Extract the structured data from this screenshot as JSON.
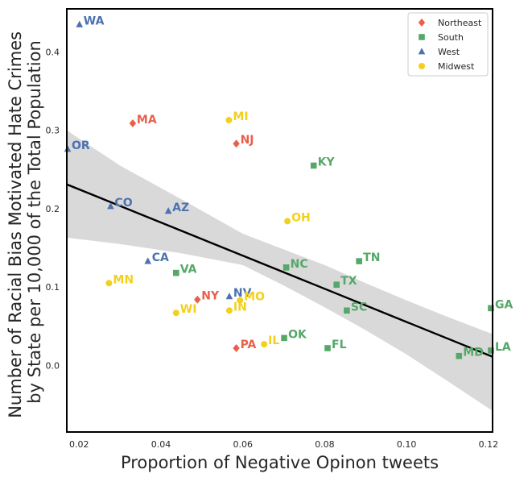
{
  "chart_data": {
    "type": "scatter",
    "xlabel": "Proportion of Negative Opinon tweets",
    "ylabel_lines": [
      "Number of Racial Bias Motivated Hate Crimes",
      "by State per 10,000 of the Total Population"
    ],
    "xlim": [
      0.017,
      0.121
    ],
    "ylim": [
      -0.085,
      0.455
    ],
    "xticks": [
      0.02,
      0.04,
      0.06,
      0.08,
      0.1,
      0.12
    ],
    "xtick_labels": [
      "0.02",
      "0.04",
      "0.06",
      "0.08",
      "0.10",
      "0.12"
    ],
    "yticks": [
      0.0,
      0.1,
      0.2,
      0.3,
      0.4
    ],
    "ytick_labels": [
      "0.0",
      "0.1",
      "0.2",
      "0.3",
      "0.4"
    ],
    "grid": false,
    "legend_position": "top-right",
    "regions": [
      {
        "name": "Northeast",
        "color": "#e8604c",
        "marker": "diamond"
      },
      {
        "name": "South",
        "color": "#55a868",
        "marker": "square"
      },
      {
        "name": "West",
        "color": "#4c72b0",
        "marker": "triangle"
      },
      {
        "name": "Midwest",
        "color": "#f2d01e",
        "marker": "circle"
      }
    ],
    "points": [
      {
        "label": "WA",
        "region": "West",
        "x": 0.0201,
        "y": 0.435
      },
      {
        "label": "OR",
        "region": "West",
        "x": 0.0172,
        "y": 0.276
      },
      {
        "label": "CO",
        "region": "West",
        "x": 0.0277,
        "y": 0.203
      },
      {
        "label": "AZ",
        "region": "West",
        "x": 0.0418,
        "y": 0.197
      },
      {
        "label": "CA",
        "region": "West",
        "x": 0.0368,
        "y": 0.133
      },
      {
        "label": "NV",
        "region": "West",
        "x": 0.0567,
        "y": 0.088
      },
      {
        "label": "MA",
        "region": "Northeast",
        "x": 0.0331,
        "y": 0.309
      },
      {
        "label": "NJ",
        "region": "Northeast",
        "x": 0.0584,
        "y": 0.283
      },
      {
        "label": "NY",
        "region": "Northeast",
        "x": 0.0489,
        "y": 0.084
      },
      {
        "label": "PA",
        "region": "Northeast",
        "x": 0.0584,
        "y": 0.022
      },
      {
        "label": "MI",
        "region": "Midwest",
        "x": 0.0566,
        "y": 0.313
      },
      {
        "label": "OH",
        "region": "Midwest",
        "x": 0.0709,
        "y": 0.184
      },
      {
        "label": "MN",
        "region": "Midwest",
        "x": 0.0273,
        "y": 0.105
      },
      {
        "label": "MO",
        "region": "Midwest",
        "x": 0.0593,
        "y": 0.083
      },
      {
        "label": "WI",
        "region": "Midwest",
        "x": 0.0437,
        "y": 0.067
      },
      {
        "label": "IN",
        "region": "Midwest",
        "x": 0.0567,
        "y": 0.07
      },
      {
        "label": "IL",
        "region": "Midwest",
        "x": 0.0652,
        "y": 0.027
      },
      {
        "label": "KY",
        "region": "South",
        "x": 0.0773,
        "y": 0.255
      },
      {
        "label": "VA",
        "region": "South",
        "x": 0.0437,
        "y": 0.118
      },
      {
        "label": "NC",
        "region": "South",
        "x": 0.0706,
        "y": 0.125
      },
      {
        "label": "TN",
        "region": "South",
        "x": 0.0884,
        "y": 0.133
      },
      {
        "label": "TX",
        "region": "South",
        "x": 0.0829,
        "y": 0.103
      },
      {
        "label": "SC",
        "region": "South",
        "x": 0.0854,
        "y": 0.07
      },
      {
        "label": "OK",
        "region": "South",
        "x": 0.0701,
        "y": 0.035
      },
      {
        "label": "FL",
        "region": "South",
        "x": 0.0807,
        "y": 0.022
      },
      {
        "label": "MD",
        "region": "South",
        "x": 0.1128,
        "y": 0.012
      },
      {
        "label": "GA",
        "region": "South",
        "x": 0.1206,
        "y": 0.073
      },
      {
        "label": "LA",
        "region": "South",
        "x": 0.1206,
        "y": 0.019
      }
    ],
    "regression": {
      "start": [
        0.017,
        0.231
      ],
      "end": [
        0.121,
        0.011
      ]
    },
    "confidence_band": {
      "upper": [
        [
          0.017,
          0.3
        ],
        [
          0.03,
          0.255
        ],
        [
          0.045,
          0.212
        ],
        [
          0.06,
          0.168
        ],
        [
          0.07,
          0.148
        ],
        [
          0.08,
          0.128
        ],
        [
          0.09,
          0.105
        ],
        [
          0.1,
          0.083
        ],
        [
          0.11,
          0.062
        ],
        [
          0.121,
          0.04
        ]
      ],
      "lower": [
        [
          0.017,
          0.163
        ],
        [
          0.03,
          0.155
        ],
        [
          0.045,
          0.143
        ],
        [
          0.06,
          0.128
        ],
        [
          0.07,
          0.102
        ],
        [
          0.08,
          0.074
        ],
        [
          0.09,
          0.045
        ],
        [
          0.1,
          0.014
        ],
        [
          0.11,
          -0.02
        ],
        [
          0.121,
          -0.058
        ]
      ]
    }
  }
}
